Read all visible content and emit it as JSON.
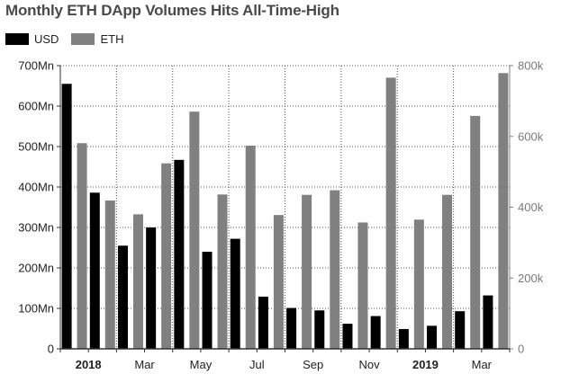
{
  "colors": {
    "usd": "#000000",
    "eth": "#808080",
    "axis": "#333333",
    "grid": "#555555",
    "right_tick_text": "#7a7a7a"
  },
  "chart_data": {
    "type": "bar",
    "title": "Monthly ETH DApp Volumes Hits All-Time-High",
    "legend_position": "top-left",
    "grid": true,
    "categories": [
      "Jan 2018",
      "Feb 2018",
      "Mar 2018",
      "Apr 2018",
      "May 2018",
      "Jun 2018",
      "Jul 2018",
      "Aug 2018",
      "Sep 2018",
      "Oct 2018",
      "Nov 2018",
      "Dec 2018",
      "Jan 2019",
      "Feb 2019",
      "Mar 2019",
      "Apr 2019"
    ],
    "series": [
      {
        "name": "USD",
        "axis": "left",
        "values": [
          655,
          386,
          255,
          300,
          467,
          240,
          272,
          129,
          101,
          95,
          62,
          81,
          49,
          57,
          93,
          132
        ]
      },
      {
        "name": "ETH",
        "axis": "right",
        "values": [
          581,
          419,
          380,
          524,
          670,
          436,
          574,
          378,
          435,
          448,
          357,
          766,
          365,
          435,
          658,
          779
        ]
      }
    ],
    "y_left": {
      "lim": [
        0,
        700
      ],
      "ticks": [
        0,
        100,
        200,
        300,
        400,
        500,
        600,
        700
      ],
      "tick_labels": [
        "0",
        "100Mn",
        "200Mn",
        "300Mn",
        "400Mn",
        "500Mn",
        "600Mn",
        "700Mn"
      ]
    },
    "y_right": {
      "lim": [
        0,
        800
      ],
      "ticks": [
        0,
        200,
        400,
        600,
        800
      ],
      "tick_labels": [
        "0",
        "200k",
        "400k",
        "600k",
        "800k"
      ]
    },
    "x_tick_labels": [
      {
        "label": "2018",
        "category_index": 0,
        "bold": true
      },
      {
        "label": "Mar",
        "category_index": 2,
        "bold": false
      },
      {
        "label": "May",
        "category_index": 4,
        "bold": false
      },
      {
        "label": "Jul",
        "category_index": 6,
        "bold": false
      },
      {
        "label": "Sep",
        "category_index": 8,
        "bold": false
      },
      {
        "label": "Nov",
        "category_index": 10,
        "bold": false
      },
      {
        "label": "2019",
        "category_index": 12,
        "bold": true
      },
      {
        "label": "Mar",
        "category_index": 14,
        "bold": false
      }
    ]
  }
}
